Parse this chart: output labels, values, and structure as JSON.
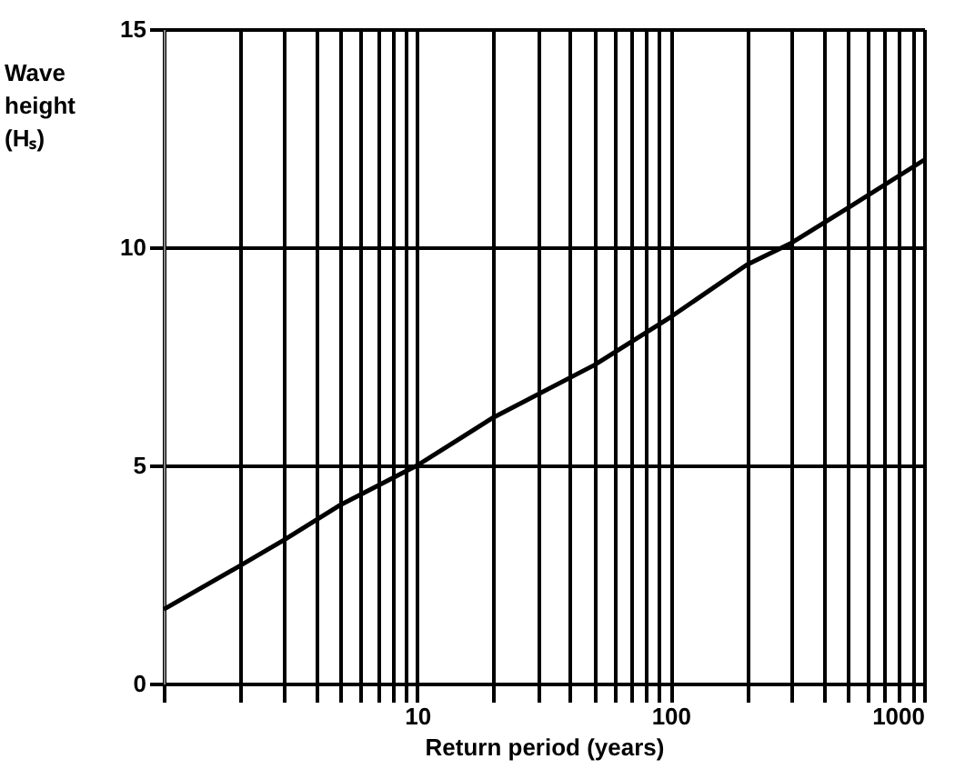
{
  "chart_data": {
    "type": "line",
    "xlabel": "Return period (years)",
    "ylabel": "Wave height (Hₛ)",
    "x": [
      1,
      2,
      3,
      5,
      10,
      20,
      50,
      100,
      200,
      300,
      500,
      1000
    ],
    "series": [
      {
        "color": "#000000",
        "values": [
          1.7,
          2.7,
          3.3,
          4.1,
          5.0,
          6.1,
          7.3,
          8.4,
          9.6,
          10.1,
          10.9,
          12.0
        ]
      }
    ],
    "log": "x",
    "xlim": [
      1,
      1000
    ],
    "ylim": [
      0,
      15
    ],
    "xticks": [
      {
        "value": 1,
        "label": null
      },
      {
        "value": 2,
        "label": null
      },
      {
        "value": 3,
        "label": null
      },
      {
        "value": 4,
        "label": null
      },
      {
        "value": 5,
        "label": null
      },
      {
        "value": 6,
        "label": null
      },
      {
        "value": 7,
        "label": null
      },
      {
        "value": 8,
        "label": null
      },
      {
        "value": 9,
        "label": null
      },
      10,
      {
        "value": 20,
        "label": null
      },
      {
        "value": 30,
        "label": null
      },
      {
        "value": 40,
        "label": null
      },
      {
        "value": 50,
        "label": null
      },
      {
        "value": 60,
        "label": null
      },
      {
        "value": 70,
        "label": null
      },
      {
        "value": 80,
        "label": null
      },
      {
        "value": 90,
        "label": null
      },
      100,
      {
        "value": 200,
        "label": null
      },
      {
        "value": 300,
        "label": null
      },
      {
        "value": 400,
        "label": null
      },
      {
        "value": 500,
        "label": null
      },
      {
        "value": 600,
        "label": null
      },
      {
        "value": 700,
        "label": null
      },
      {
        "value": 800,
        "label": null
      },
      {
        "value": 900,
        "label": null
      },
      1000
    ],
    "yticks": [
      0,
      5,
      10,
      15
    ],
    "grid": true,
    "marker": "none",
    "line_style": "solid"
  }
}
